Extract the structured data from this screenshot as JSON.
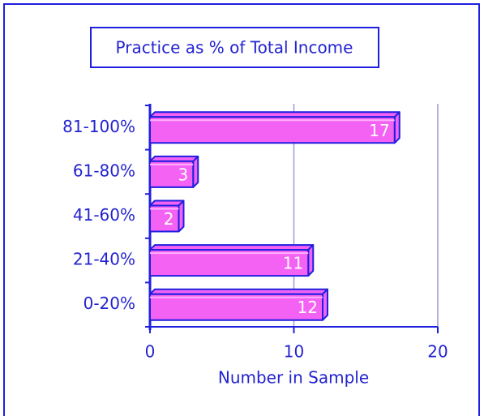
{
  "chart_data": {
    "type": "bar",
    "orientation": "horizontal",
    "title": "Practice as % of Total Income",
    "x_label": "Number in Sample",
    "categories": [
      "0-20%",
      "21-40%",
      "41-60%",
      "61-80%",
      "81-100%"
    ],
    "values": [
      12,
      11,
      2,
      3,
      17
    ],
    "color": "#f462f4",
    "edge_color": "#1f1fe0",
    "xlim": [
      0,
      20
    ],
    "xticks": [
      0,
      10,
      20
    ],
    "grid": true
  }
}
